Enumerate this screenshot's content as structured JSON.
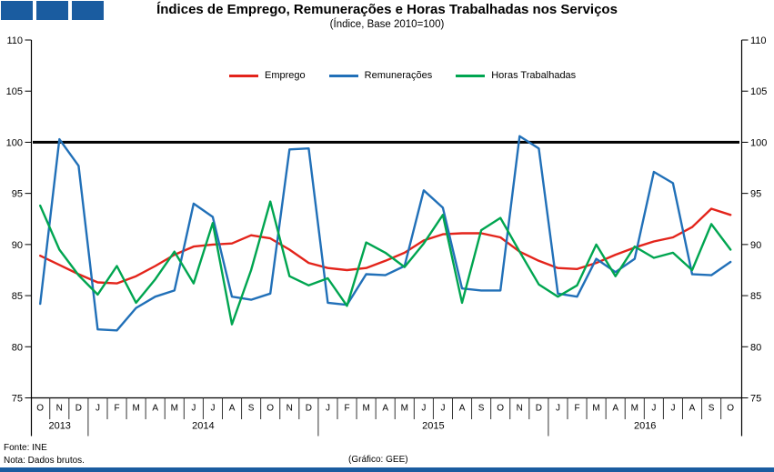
{
  "header": {
    "logo_color": "#1a5ca0",
    "logo_squares": 3
  },
  "title": "Índices de Emprego, Remunerações e Horas Trabalhadas nos Serviços",
  "subtitle": "(Índice, Base 2010=100)",
  "legend": [
    {
      "label": "Emprego",
      "color": "#e3241b"
    },
    {
      "label": "Remunerações",
      "color": "#2170b8"
    },
    {
      "label": "Horas Trabalhadas",
      "color": "#00a550"
    }
  ],
  "footer": {
    "source": "Fonte: INE",
    "note": "Nota: Dados brutos.",
    "credit": "(Gráfico: GEE)"
  },
  "chart_data": {
    "type": "line",
    "title": "Índices de Emprego, Remunerações e Horas Trabalhadas nos Serviços",
    "subtitle": "(Índice, Base 2010=100)",
    "ylim": [
      75,
      110
    ],
    "yticks": [
      75,
      80,
      85,
      90,
      95,
      100,
      105,
      110
    ],
    "reference_line": 100,
    "grid": false,
    "legend_position": "top-center",
    "x_months": [
      "O",
      "N",
      "D",
      "J",
      "F",
      "M",
      "A",
      "M",
      "J",
      "J",
      "A",
      "S",
      "O",
      "N",
      "D",
      "J",
      "F",
      "M",
      "A",
      "M",
      "J",
      "J",
      "A",
      "S",
      "O",
      "N",
      "D",
      "J",
      "F",
      "M",
      "A",
      "M",
      "J",
      "J",
      "A",
      "S",
      "O"
    ],
    "year_groups": [
      {
        "label": "2013",
        "months": 3
      },
      {
        "label": "2014",
        "months": 12
      },
      {
        "label": "2015",
        "months": 12
      },
      {
        "label": "2016",
        "months": 10
      }
    ],
    "series": [
      {
        "name": "Emprego",
        "color": "#e3241b",
        "values": [
          88.9,
          88.0,
          87.1,
          86.3,
          86.2,
          86.9,
          87.9,
          89.0,
          89.8,
          90.0,
          90.1,
          90.9,
          90.6,
          89.5,
          88.2,
          87.7,
          87.5,
          87.7,
          88.4,
          89.2,
          90.4,
          91.0,
          91.1,
          91.1,
          90.7,
          89.3,
          88.4,
          87.7,
          87.6,
          88.2,
          89.0,
          89.7,
          90.3,
          90.7,
          91.7,
          93.5,
          92.9
        ]
      },
      {
        "name": "Remunerações",
        "color": "#2170b8",
        "values": [
          84.2,
          100.3,
          97.7,
          81.7,
          81.6,
          83.8,
          84.9,
          85.5,
          94.0,
          92.7,
          84.9,
          84.6,
          85.2,
          99.3,
          99.4,
          84.3,
          84.1,
          87.1,
          87.0,
          87.9,
          95.3,
          93.6,
          85.7,
          85.5,
          85.5,
          100.6,
          99.4,
          85.2,
          84.9,
          88.6,
          87.3,
          88.6,
          97.1,
          96.0,
          87.1,
          87.0,
          88.3
        ]
      },
      {
        "name": "Horas Trabalhadas",
        "color": "#00a550",
        "values": [
          93.8,
          89.5,
          87.0,
          85.1,
          87.9,
          84.3,
          86.6,
          89.3,
          86.2,
          92.1,
          82.2,
          87.5,
          94.2,
          86.9,
          86.0,
          86.7,
          84.0,
          90.2,
          89.2,
          87.8,
          90.1,
          92.9,
          84.3,
          91.4,
          92.6,
          89.3,
          86.1,
          84.9,
          86.0,
          90.0,
          86.9,
          89.8,
          88.7,
          89.2,
          87.5,
          92.0,
          89.5
        ]
      }
    ]
  }
}
